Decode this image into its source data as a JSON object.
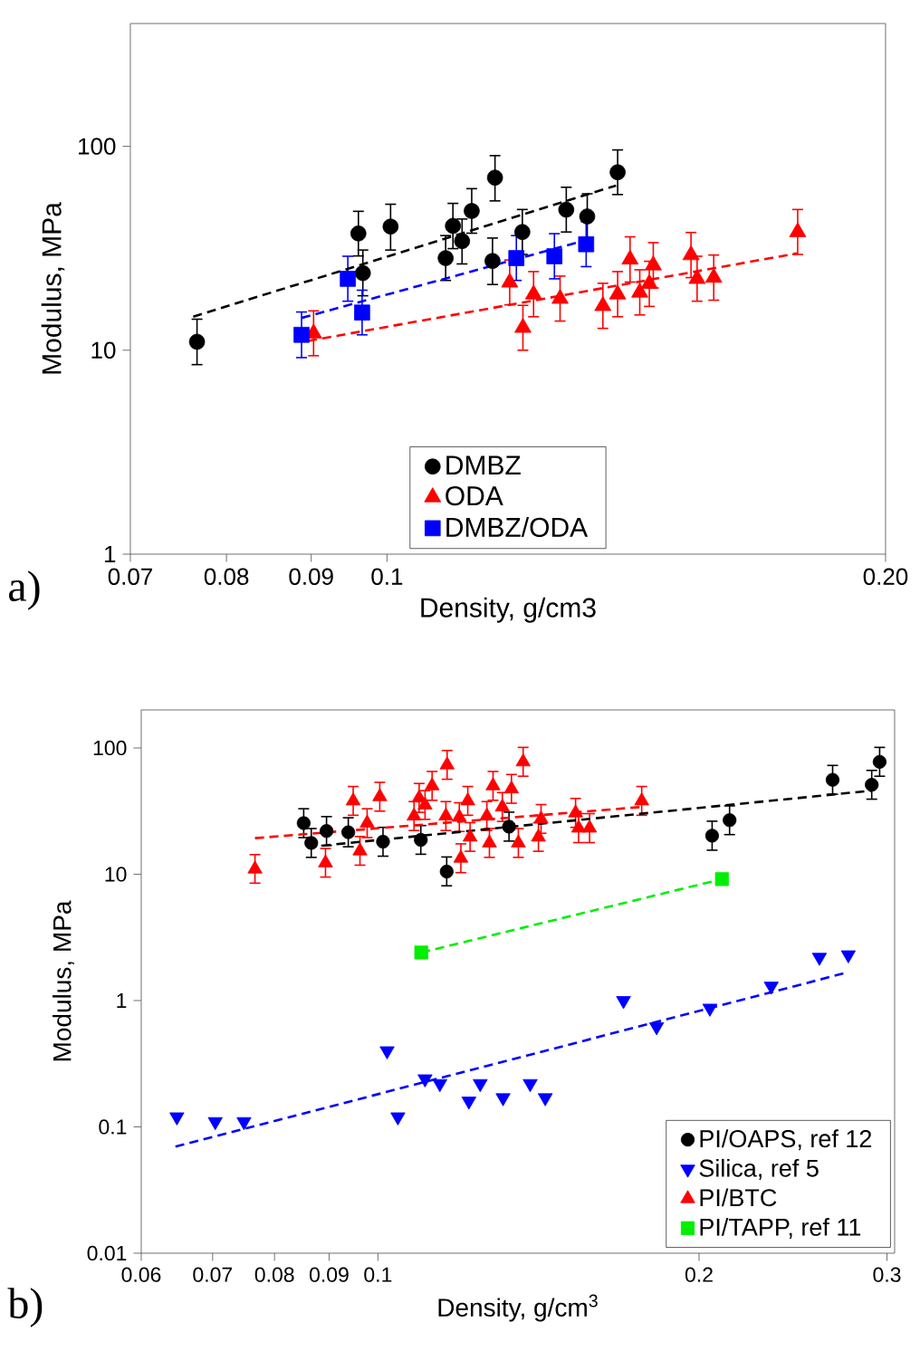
{
  "chart_data": [
    {
      "type": "scatter",
      "xlabel": "Density, g/cm3",
      "ylabel": "Modulus, MPa",
      "log": "xy",
      "xlim": [
        0.07,
        0.2
      ],
      "ylim": [
        1,
        400
      ],
      "xticks": [
        0.07,
        0.08,
        0.09,
        0.1,
        {
          "value": 0.2,
          "label": "0.20"
        }
      ],
      "yticks": [
        1,
        10,
        100
      ],
      "legend": "bottom",
      "annotations": [
        "a)"
      ],
      "series": [
        {
          "name": "DMBZ",
          "color": "#000000",
          "marker": "circle",
          "x": [
            0.0768,
            0.0961,
            0.0967,
            0.1005,
            0.1085,
            0.1096,
            0.111,
            0.1125,
            0.1162,
            0.1158,
            0.1207,
            0.1283,
            0.1321,
            0.1378
          ],
          "values": [
            11.0,
            37.4,
            23.9,
            40.4,
            28.3,
            40.7,
            34.3,
            48.2,
            70.2,
            27.4,
            38.0,
            48.9,
            45.3,
            74.6
          ],
          "errors": [
            [
              8.5,
              14.2
            ],
            [
              29,
              48
            ],
            [
              18.5,
              31
            ],
            [
              31,
              52
            ],
            [
              22,
              36.5
            ],
            [
              31.5,
              52.5
            ],
            [
              26.5,
              44
            ],
            [
              37.5,
              62
            ],
            [
              54,
              90
            ],
            [
              21,
              35.5
            ],
            [
              29.5,
              49
            ],
            [
              38,
              63
            ],
            [
              35,
              58.5
            ],
            [
              58,
              96
            ]
          ]
        },
        {
          "name": "ODA",
          "color": "#ff0000",
          "marker": "triangle",
          "x": [
            0.0903,
            0.1186,
            0.1208,
            0.1226,
            0.1272,
            0.135,
            0.1378,
            0.1402,
            0.1421,
            0.144,
            0.1448,
            0.1526,
            0.1539,
            0.1575,
            0.177
          ],
          "values": [
            12.1,
            21.5,
            12.9,
            18.8,
            17.9,
            16.5,
            18.8,
            27.9,
            19.2,
            21.2,
            26.1,
            29.3,
            22.4,
            22.7,
            38.0
          ],
          "errors": [
            [
              9.4,
              15.6
            ],
            [
              16.7,
              27.7
            ],
            [
              10,
              16.6
            ],
            [
              14.6,
              24.3
            ],
            [
              13.9,
              23.1
            ],
            [
              12.8,
              21.3
            ],
            [
              14.6,
              24.3
            ],
            [
              21.6,
              36
            ],
            [
              14.9,
              24.8
            ],
            [
              16.4,
              27.3
            ],
            [
              20.2,
              33.7
            ],
            [
              22.7,
              37.8
            ],
            [
              17.4,
              28.9
            ],
            [
              17.6,
              29.3
            ],
            [
              29.5,
              49
            ]
          ]
        },
        {
          "name": "DMBZ/ODA",
          "color": "#0000ff",
          "marker": "square",
          "x": [
            0.0888,
            0.0947,
            0.0966,
            0.1197,
            0.1262,
            0.1319
          ],
          "values": [
            11.9,
            22.4,
            15.3,
            28.3,
            28.9,
            33.1
          ],
          "errors": [
            [
              9.2,
              15.4
            ],
            [
              17.4,
              28.9
            ],
            [
              11.9,
              19.7
            ],
            [
              22,
              36.5
            ],
            [
              22.4,
              37.3
            ],
            [
              25.7,
              42.7
            ]
          ]
        },
        {
          "type": "line",
          "color": "#000000",
          "marker": "none",
          "line_style": "dashed",
          "x": [
            0.0764,
            0.1375
          ],
          "values": [
            14.6,
            64.2
          ]
        },
        {
          "type": "line",
          "color": "#ff0000",
          "marker": "none",
          "line_style": "dashed",
          "x": [
            0.0896,
            0.177
          ],
          "values": [
            11.1,
            29.9
          ]
        },
        {
          "type": "line",
          "color": "#0000ff",
          "marker": "none",
          "line_style": "dashed",
          "x": [
            0.0888,
            0.1319
          ],
          "values": [
            14.4,
            34.7
          ]
        }
      ]
    },
    {
      "type": "scatter",
      "xlabel": "Density, g/cm$^{3}$",
      "ylabel": "Modulus, MPa",
      "log": "xy",
      "xlim": [
        0.06,
        0.305
      ],
      "ylim": [
        0.01,
        200
      ],
      "xticks": [
        0.06,
        0.07,
        0.08,
        0.09,
        0.1,
        0.2,
        0.3
      ],
      "yticks": [
        0.01,
        0.1,
        1,
        10,
        100
      ],
      "legend": "bottom right",
      "annotations": [
        "b)"
      ],
      "series": [
        {
          "name": "PI/OAPS, ref 12",
          "color": "#000000",
          "marker": "circle",
          "x": [
            0.0852,
            0.0866,
            0.0895,
            0.0938,
            0.1011,
            0.1097,
            0.116,
            0.1327,
            0.2057,
            0.2136,
            0.2668,
            0.2903,
            0.2953
          ],
          "values": [
            25.4,
            17.7,
            22.0,
            21.5,
            18.1,
            18.7,
            10.5,
            23.8,
            20.2,
            26.8,
            55.9,
            51.1,
            77.6
          ],
          "errors": [
            [
              19.5,
              33
            ],
            [
              13.6,
              23
            ],
            [
              16.9,
              28.6
            ],
            [
              16.5,
              28
            ],
            [
              13.9,
              23.5
            ],
            [
              14.4,
              24.3
            ],
            [
              8.1,
              13.7
            ],
            [
              18.3,
              31
            ],
            [
              15.5,
              26.3
            ],
            [
              20.6,
              34.8
            ],
            [
              43,
              72.7
            ],
            [
              39.3,
              66.4
            ],
            [
              59.7,
              101
            ]
          ]
        },
        {
          "name": "Silica, ref 5",
          "color": "#0000ff",
          "marker": "triangle down",
          "x": [
            0.0648,
            0.0704,
            0.0749,
            0.102,
            0.1044,
            0.1107,
            0.1143,
            0.1217,
            0.1247,
            0.131,
            0.1389,
            0.1435,
            0.1699,
            0.1825,
            0.2047,
            0.2337,
            0.2593,
            0.276
          ],
          "values": [
            0.12,
            0.11,
            0.11,
            0.4,
            0.12,
            0.24,
            0.22,
            0.16,
            0.22,
            0.17,
            0.22,
            0.17,
            1.0,
            0.62,
            0.87,
            1.3,
            2.2,
            2.3
          ]
        },
        {
          "name": "PI/BTC",
          "color": "#ff0000",
          "marker": "triangle",
          "x": [
            0.0767,
            0.0893,
            0.0948,
            0.0962,
            0.0977,
            0.1004,
            0.1081,
            0.1093,
            0.1107,
            0.1124,
            0.1161,
            0.1158,
            0.1196,
            0.1214,
            0.1192,
            0.122,
            0.1265,
            0.1282,
            0.1272,
            0.1334,
            0.1308,
            0.1368,
            0.1354,
            0.1422,
            0.1414,
            0.1532,
            0.1542,
            0.1579,
            0.1767
          ],
          "values": [
            11.0,
            12.3,
            38.1,
            15.3,
            25.4,
            41.1,
            28.9,
            40.2,
            35.3,
            50.1,
            73.4,
            28.9,
            13.4,
            38.1,
            28.3,
            19.7,
            28.9,
            50.1,
            17.7,
            47.4,
            34.1,
            77.6,
            17.7,
            27.4,
            19.7,
            30.6,
            23.2,
            23.2,
            38.1
          ],
          "errors": [
            [
              8.5,
              14.3
            ],
            [
              9.5,
              16
            ],
            [
              29.3,
              49.5
            ],
            [
              11.8,
              19.9
            ],
            [
              19.5,
              33
            ],
            [
              31.6,
              53.4
            ],
            [
              22.2,
              37.6
            ],
            [
              30.9,
              52.3
            ],
            [
              27.2,
              45.9
            ],
            [
              38.5,
              65.1
            ],
            [
              56.5,
              95.4
            ],
            [
              22.2,
              37.6
            ],
            [
              10.3,
              17.4
            ],
            [
              29.3,
              49.5
            ],
            [
              21.8,
              36.8
            ],
            [
              15.2,
              25.6
            ],
            [
              22.2,
              37.6
            ],
            [
              38.5,
              65.1
            ],
            [
              13.6,
              23
            ],
            [
              36.5,
              61.6
            ],
            [
              26.2,
              44.3
            ],
            [
              59.7,
              101
            ],
            [
              13.6,
              23
            ],
            [
              21.1,
              35.6
            ],
            [
              15.2,
              25.6
            ],
            [
              23.5,
              39.8
            ],
            [
              17.8,
              30.2
            ],
            [
              17.8,
              30.2
            ],
            [
              29.3,
              49.5
            ]
          ]
        },
        {
          "name": "PI/TAPP, ref 11",
          "color": "#00ee00",
          "marker": "square",
          "x": [
            0.1098,
            0.2101
          ],
          "values": [
            2.4,
            9.15
          ]
        },
        {
          "type": "line",
          "color": "#000000",
          "marker": "none",
          "line_style": "dashed",
          "x": [
            0.0859,
            0.2903
          ],
          "values": [
            16.4,
            45.9
          ]
        },
        {
          "type": "line",
          "color": "#0000ff",
          "marker": "none",
          "line_style": "dashed",
          "x": [
            0.0646,
            0.2732
          ],
          "values": [
            0.0697,
            1.64
          ]
        },
        {
          "type": "line",
          "color": "#ff0000",
          "marker": "none",
          "line_style": "dashed",
          "x": [
            0.0767,
            0.1767
          ],
          "values": [
            19.3,
            34.1
          ]
        },
        {
          "type": "line",
          "color": "#00ee00",
          "marker": "none",
          "line_style": "dashed",
          "x": [
            0.1098,
            0.2101
          ],
          "values": [
            2.4,
            9.15
          ]
        }
      ]
    }
  ]
}
